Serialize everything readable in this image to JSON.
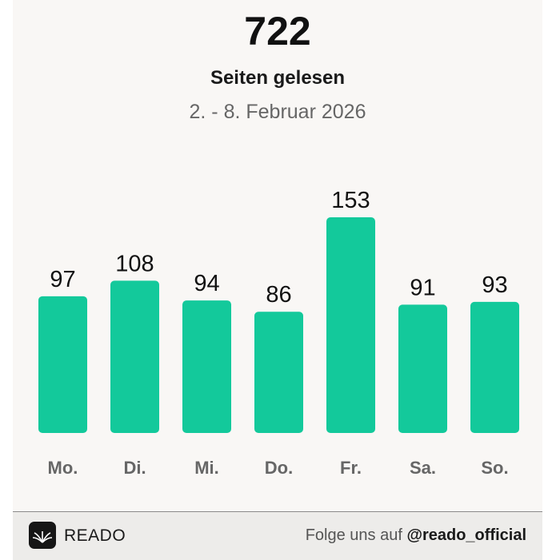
{
  "header": {
    "total": "722",
    "subtitle": "Seiten gelesen",
    "date_range": "2. - 8. Februar 2026"
  },
  "colors": {
    "bar": "#13c99b",
    "value_label": "#111111",
    "category_label": "#666666"
  },
  "chart_data": {
    "type": "bar",
    "categories": [
      "Mo.",
      "Di.",
      "Mi.",
      "Do.",
      "Fr.",
      "Sa.",
      "So."
    ],
    "values": [
      97,
      108,
      94,
      86,
      153,
      91,
      93
    ],
    "ylim": [
      0,
      153
    ],
    "grid": false,
    "data_labels": true
  },
  "footer": {
    "brand": "READO",
    "follow_text": "Folge uns auf",
    "handle": "@reado_official",
    "logo_icon": "book-icon"
  }
}
